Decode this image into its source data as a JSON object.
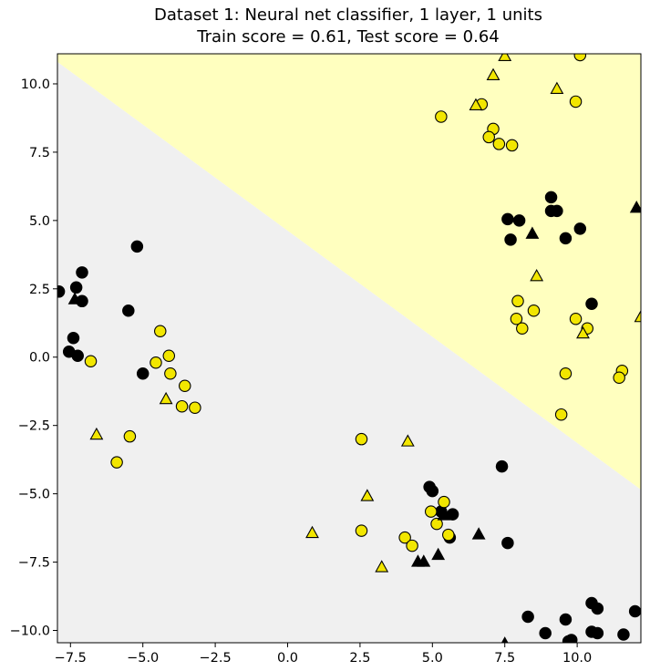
{
  "chart_data": {
    "type": "scatter",
    "title": "Dataset 1: Neural net classifier, 1 layer, 1 units",
    "subtitle": "Train score = 0.61, Test score = 0.64",
    "xlabel": "",
    "ylabel": "",
    "xlim": [
      -7.95,
      12.2
    ],
    "ylim": [
      -10.45,
      11.1
    ],
    "x_ticks": [
      {
        "value": -7.5,
        "label": "−7.5"
      },
      {
        "value": -5.0,
        "label": "−5.0"
      },
      {
        "value": -2.5,
        "label": "−2.5"
      },
      {
        "value": 0.0,
        "label": "0.0"
      },
      {
        "value": 2.5,
        "label": "2.5"
      },
      {
        "value": 5.0,
        "label": "5.0"
      },
      {
        "value": 7.5,
        "label": "7.5"
      },
      {
        "value": 10.0,
        "label": "10.0"
      }
    ],
    "y_ticks": [
      {
        "value": 10.0,
        "label": "10.0"
      },
      {
        "value": 7.5,
        "label": "7.5"
      },
      {
        "value": 5.0,
        "label": "5.0"
      },
      {
        "value": 2.5,
        "label": "2.5"
      },
      {
        "value": 0.0,
        "label": "0.0"
      },
      {
        "value": -2.5,
        "label": "−2.5"
      },
      {
        "value": -5.0,
        "label": "−5.0"
      },
      {
        "value": -7.5,
        "label": "−7.5"
      },
      {
        "value": -10.0,
        "label": "−10.0"
      }
    ],
    "grid": false,
    "decision_boundary": {
      "type": "linear",
      "points": [
        [
          -7.95,
          10.8
        ],
        [
          12.2,
          -4.85
        ]
      ],
      "region_above_color": "#ffffbf",
      "region_below_color": "#f0f0f0"
    },
    "colors": {
      "class_0": "#000000",
      "class_1": "#f2e600",
      "edge": "#000000"
    },
    "series": [
      {
        "class": 0,
        "split": "train",
        "marker": "circle",
        "points": [
          [
            -7.9,
            2.4
          ],
          [
            -7.1,
            3.1
          ],
          [
            -7.3,
            2.55
          ],
          [
            -7.1,
            2.05
          ],
          [
            -7.4,
            0.7
          ],
          [
            -7.55,
            0.2
          ],
          [
            -7.25,
            0.05
          ],
          [
            -5.2,
            4.05
          ],
          [
            -5.5,
            1.7
          ],
          [
            -5.0,
            -0.6
          ],
          [
            5.7,
            -5.75
          ],
          [
            5.3,
            -5.65
          ],
          [
            4.9,
            -4.75
          ],
          [
            5.0,
            -4.9
          ],
          [
            5.6,
            -6.6
          ],
          [
            7.4,
            -4.0
          ],
          [
            7.6,
            -6.8
          ],
          [
            7.6,
            5.05
          ],
          [
            8.0,
            5.0
          ],
          [
            7.7,
            4.3
          ],
          [
            9.1,
            5.85
          ],
          [
            9.3,
            5.35
          ],
          [
            9.1,
            5.35
          ],
          [
            9.6,
            4.35
          ],
          [
            10.1,
            4.7
          ],
          [
            10.5,
            1.95
          ],
          [
            8.3,
            -9.5
          ],
          [
            8.9,
            -10.1
          ],
          [
            9.6,
            -9.6
          ],
          [
            9.7,
            -10.4
          ],
          [
            9.8,
            -10.35
          ],
          [
            10.5,
            -9.0
          ],
          [
            10.5,
            -10.05
          ],
          [
            10.7,
            -9.2
          ],
          [
            10.7,
            -10.1
          ],
          [
            11.6,
            -10.15
          ],
          [
            12.0,
            -9.3
          ]
        ]
      },
      {
        "class": 1,
        "split": "train",
        "marker": "circle",
        "points": [
          [
            -6.8,
            -0.15
          ],
          [
            -4.4,
            0.95
          ],
          [
            -4.55,
            -0.2
          ],
          [
            -4.1,
            0.05
          ],
          [
            -4.05,
            -0.6
          ],
          [
            -3.55,
            -1.05
          ],
          [
            -3.65,
            -1.8
          ],
          [
            -3.2,
            -1.85
          ],
          [
            -5.45,
            -2.9
          ],
          [
            -5.9,
            -3.85
          ],
          [
            2.55,
            -3.0
          ],
          [
            2.55,
            -6.35
          ],
          [
            4.05,
            -6.6
          ],
          [
            4.3,
            -6.9
          ],
          [
            4.95,
            -5.65
          ],
          [
            5.15,
            -6.1
          ],
          [
            5.4,
            -5.3
          ],
          [
            5.55,
            -6.5
          ],
          [
            5.3,
            8.8
          ],
          [
            6.7,
            9.25
          ],
          [
            7.1,
            8.35
          ],
          [
            6.95,
            8.05
          ],
          [
            7.3,
            7.8
          ],
          [
            7.75,
            7.75
          ],
          [
            9.95,
            9.35
          ],
          [
            10.1,
            11.05
          ],
          [
            7.95,
            2.05
          ],
          [
            7.9,
            1.4
          ],
          [
            8.1,
            1.05
          ],
          [
            8.5,
            1.7
          ],
          [
            9.95,
            1.4
          ],
          [
            10.35,
            1.05
          ],
          [
            9.6,
            -0.6
          ],
          [
            9.45,
            -2.1
          ],
          [
            11.55,
            -0.5
          ],
          [
            11.45,
            -0.75
          ]
        ]
      },
      {
        "class": 0,
        "split": "test",
        "marker": "triangle",
        "points": [
          [
            -7.35,
            2.1
          ],
          [
            4.5,
            -7.5
          ],
          [
            4.7,
            -7.5
          ],
          [
            5.2,
            -7.25
          ],
          [
            5.4,
            -5.8
          ],
          [
            6.6,
            -6.5
          ],
          [
            7.5,
            -10.5
          ],
          [
            8.45,
            4.5
          ],
          [
            12.05,
            5.45
          ]
        ]
      },
      {
        "class": 1,
        "split": "test",
        "marker": "triangle",
        "points": [
          [
            -6.6,
            -2.85
          ],
          [
            -4.2,
            -1.55
          ],
          [
            0.85,
            -6.45
          ],
          [
            2.75,
            -5.1
          ],
          [
            3.25,
            -7.7
          ],
          [
            4.15,
            -3.1
          ],
          [
            6.5,
            9.2
          ],
          [
            7.1,
            10.3
          ],
          [
            7.5,
            11.0
          ],
          [
            9.3,
            9.8
          ],
          [
            8.6,
            2.95
          ],
          [
            10.2,
            0.85
          ],
          [
            12.2,
            1.45
          ]
        ]
      }
    ]
  }
}
